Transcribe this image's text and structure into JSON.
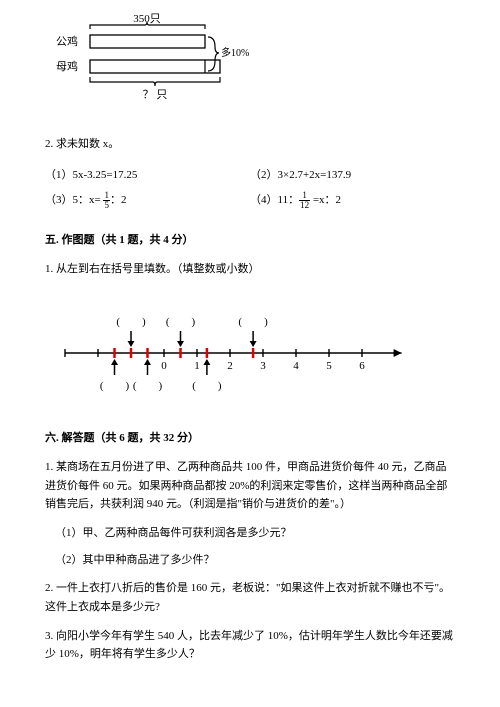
{
  "diagram": {
    "top_label": "350只",
    "row1_label": "公鸡",
    "row2_label": "母鸡",
    "right_label": "多10%",
    "bottom_label": "？ 只"
  },
  "problem2": {
    "text": "2. 求未知数 x。",
    "eq1": "（1）5x-3.25=17.25",
    "eq2": "（2）3×2.7+2x=137.9",
    "eq3_pre": "（3）5：x= ",
    "eq3_frac_n": "1",
    "eq3_frac_d": "5",
    "eq3_post": "：2",
    "eq4_pre": "（4）11：",
    "eq4_frac_n": "1",
    "eq4_frac_d": "12",
    "eq4_post": " =x：2"
  },
  "section5": {
    "title": "五. 作图题（共 1 题，共 4 分）",
    "q1": "1. 从左到右在括号里填数。（填整数或小数）"
  },
  "numberline": {
    "ticks": [
      "0",
      "1",
      "2",
      "3",
      "4",
      "5",
      "6"
    ],
    "upper_blanks": [
      "(　　)",
      "(　　)",
      "(　　)"
    ],
    "lower_blanks": [
      "(　　)",
      "(　　)",
      "(　　)"
    ],
    "upper_positions": [
      -1,
      0.5,
      2.7
    ],
    "lower_positions": [
      -1.5,
      -0.5,
      1.3
    ],
    "line_start": -3,
    "line_end": 7.2
  },
  "section6": {
    "title": "六. 解答题（共 6 题，共 32 分）",
    "q1": "1. 某商场在五月份进了甲、乙两种商品共 100 件，甲商品进货价每件 40 元，乙商品进货价每件 60 元。如果两种商品都按 20%的利润来定零售价，这样当两种商品全部销售完后，共获利润 940 元。（利润是指\"销价与进货价的差\"。）",
    "q1_sub1": "（1）甲、乙两种商品每件可获利润各是多少元？",
    "q1_sub2": "（2）其中甲种商品进了多少件？",
    "q2": "2. 一件上衣打八折后的售价是 160 元，老板说：\"如果这件上衣对折就不赚也不亏\"。这件上衣成本是多少元?",
    "q3": "3. 向阳小学今年有学生 540 人，比去年减少了 10%，估计明年学生人数比今年还要减少 10%，明年将有学生多少人？"
  }
}
